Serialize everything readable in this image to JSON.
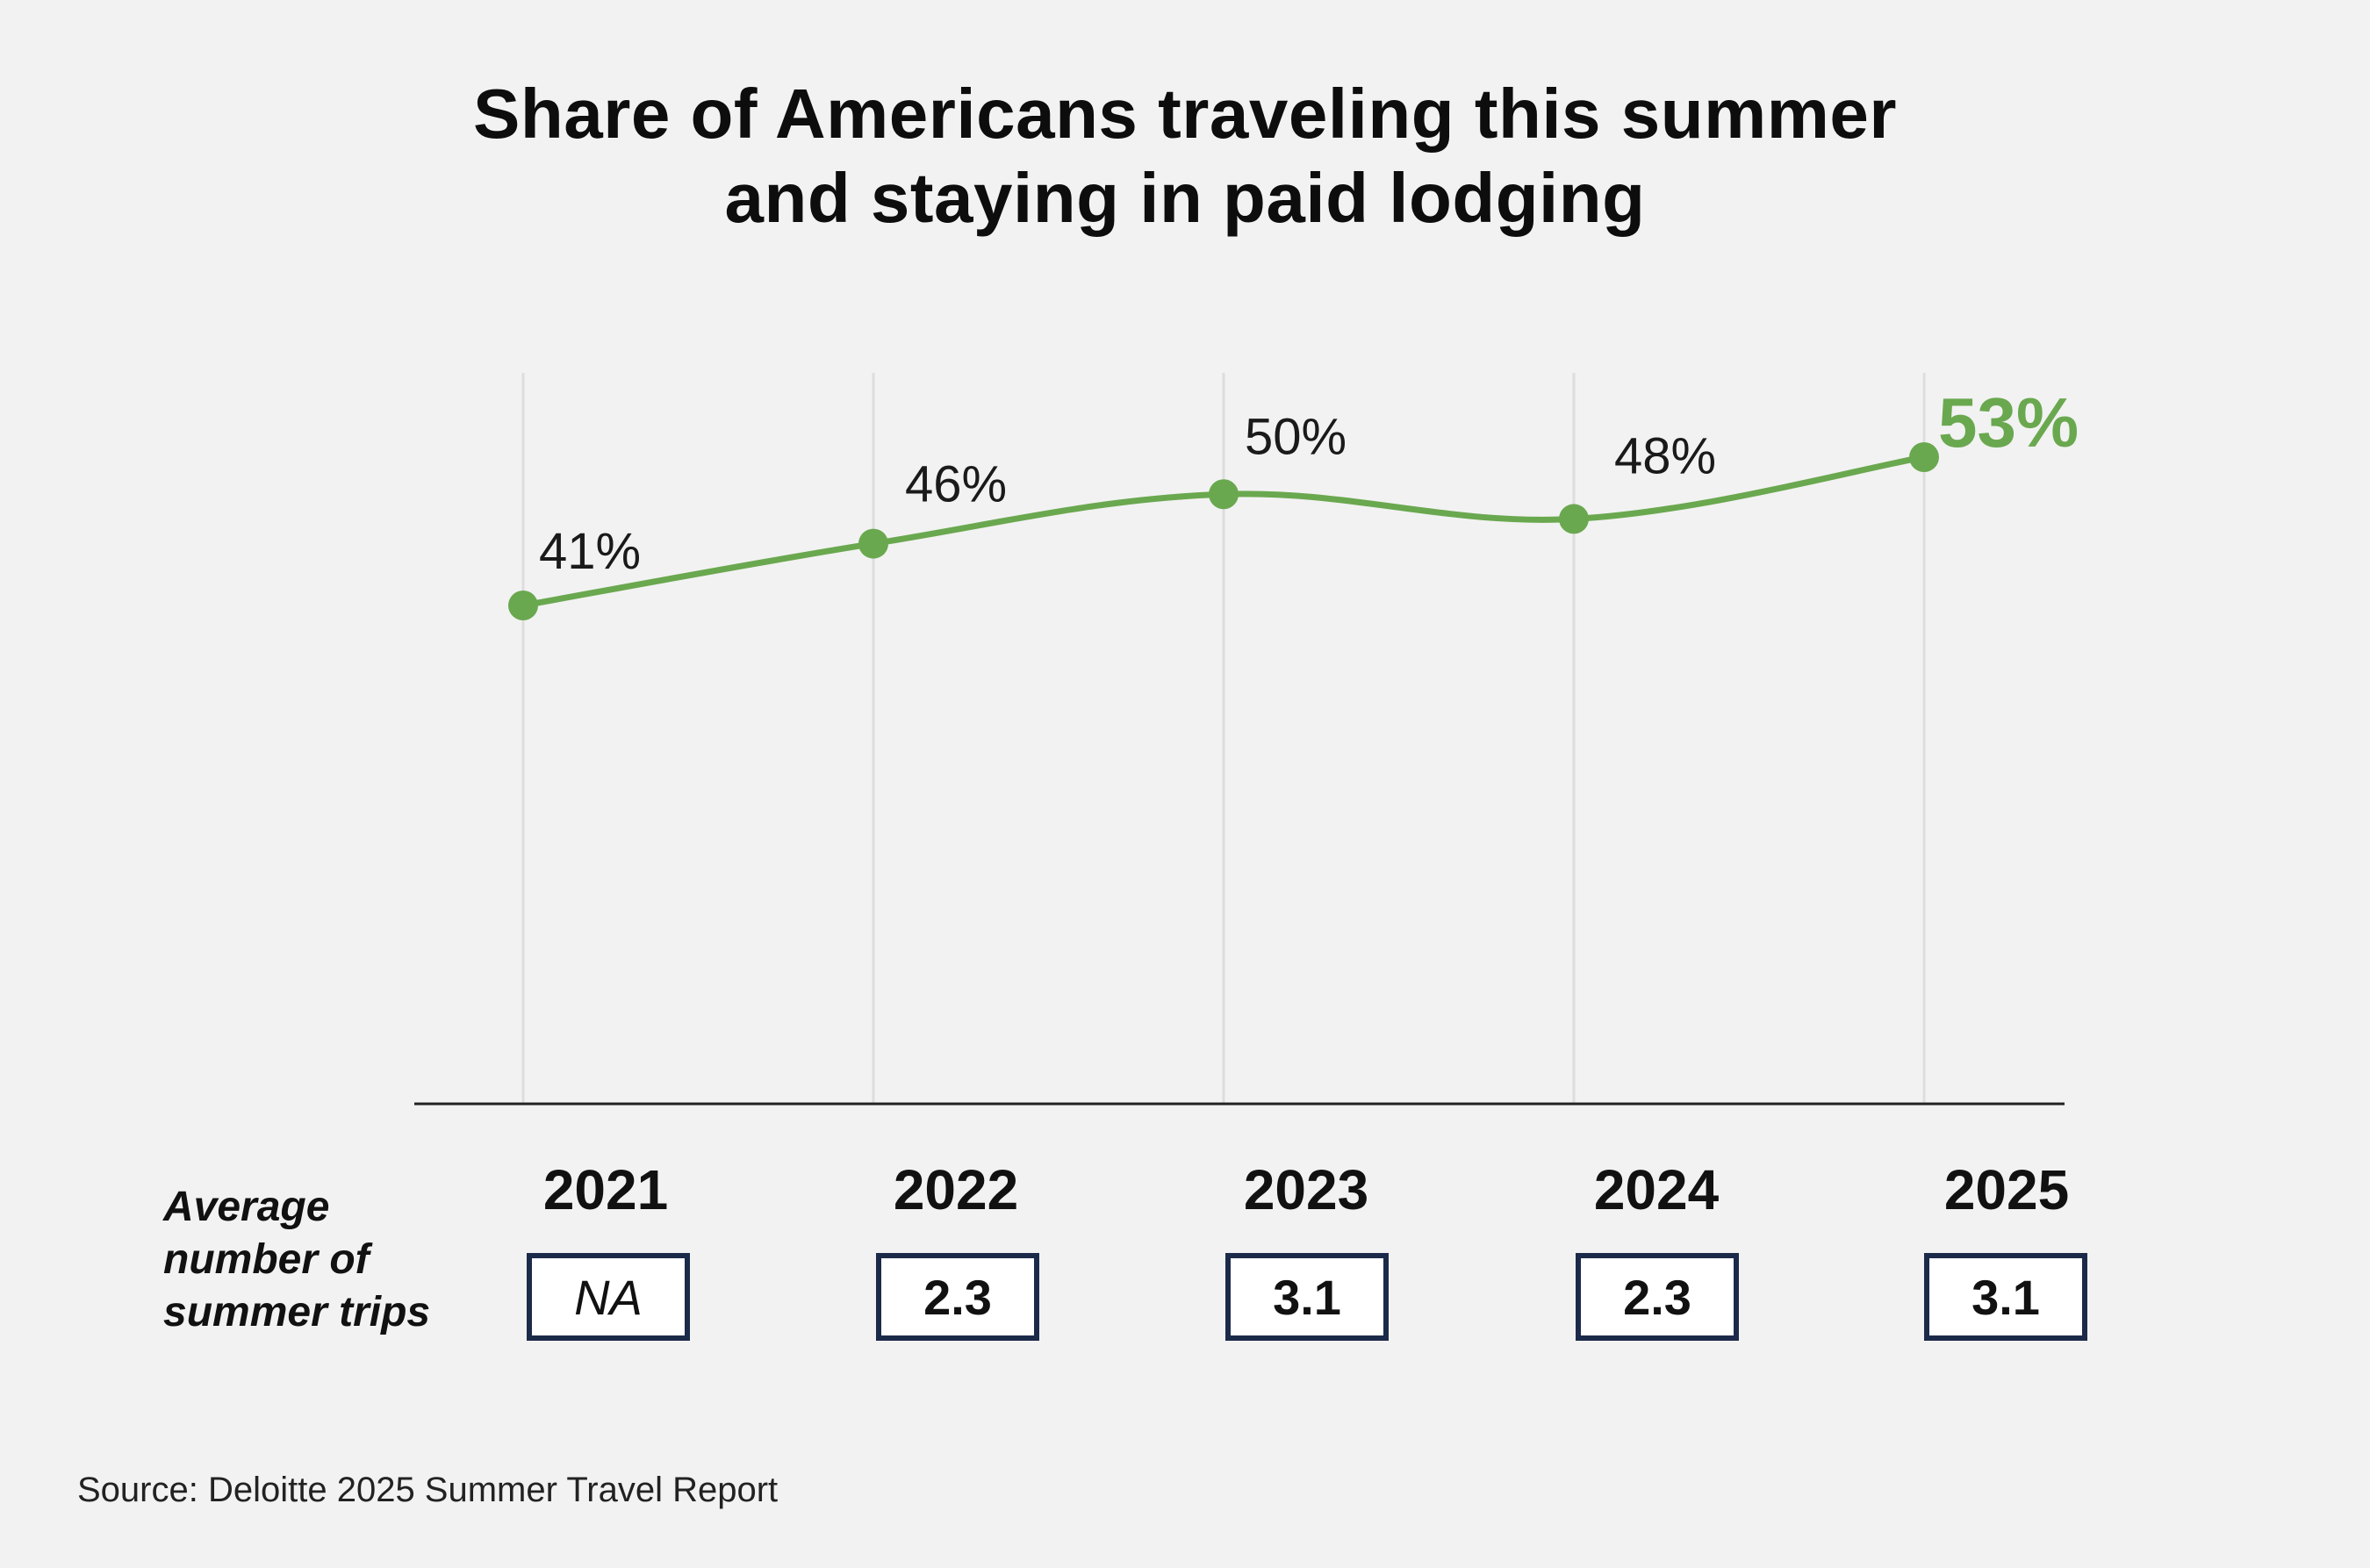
{
  "title": {
    "line1": "Share of Americans traveling this summer",
    "line2": "and staying in paid lodging"
  },
  "colors": {
    "line": "#6aa84f",
    "gridline": "#dddddd",
    "axis": "#222222",
    "box_border": "#1c2a4a",
    "background": "#f2f2f2"
  },
  "chart_data": {
    "type": "line",
    "title": "Share of Americans traveling this summer and staying in paid lodging",
    "x": [
      "2021",
      "2022",
      "2023",
      "2024",
      "2025"
    ],
    "series": [
      {
        "values": [
          41,
          46,
          50,
          48,
          53
        ],
        "labels": [
          "41%",
          "46%",
          "50%",
          "48%",
          "53%"
        ]
      }
    ],
    "highlight_index": 4,
    "grid": "vertical",
    "xlabel": "",
    "ylabel": ""
  },
  "trips": {
    "caption_line1": "Average",
    "caption_line2": "number of",
    "caption_line3": "summer trips",
    "values": [
      "NA",
      "2.3",
      "3.1",
      "2.3",
      "3.1"
    ]
  },
  "source": "Source: Deloitte 2025 Summer Travel Report"
}
